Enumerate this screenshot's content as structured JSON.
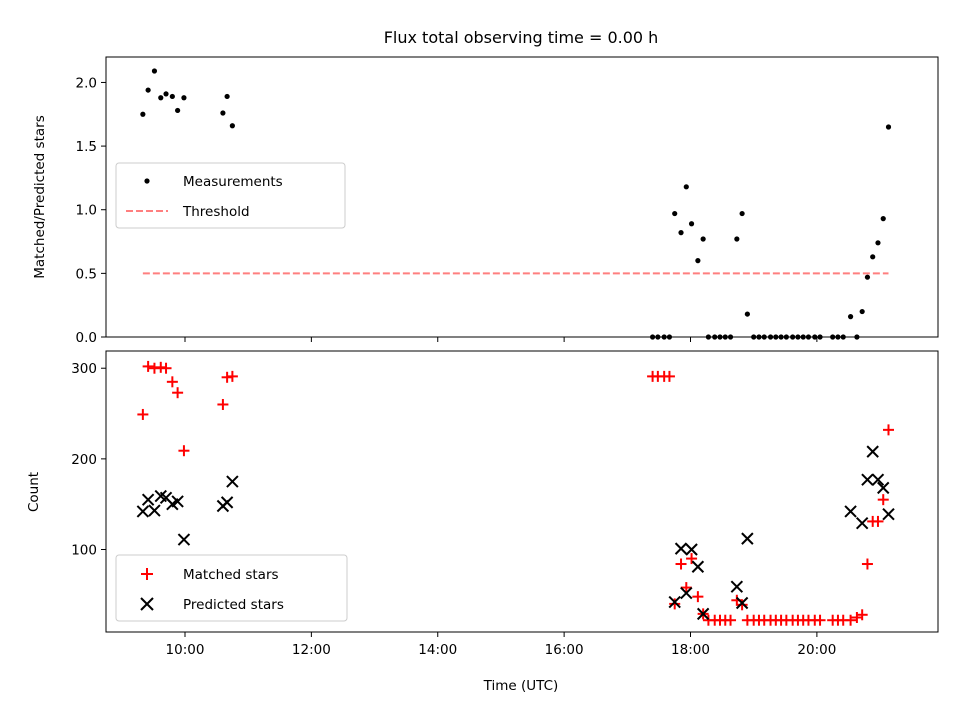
{
  "chart_data": [
    {
      "type": "scatter",
      "title": "Flux total observing time = 0.00 h",
      "xlabel": "",
      "ylabel": "Matched/Predicted stars",
      "ylim": [
        0,
        2.2
      ],
      "xlim": [
        "08:45",
        "21:55"
      ],
      "yticks": [
        {
          "v": 0.0,
          "label": "0.0"
        },
        {
          "v": 0.5,
          "label": "0.5"
        },
        {
          "v": 1.0,
          "label": "1.0"
        },
        {
          "v": 1.5,
          "label": "1.5"
        },
        {
          "v": 2.0,
          "label": "2.0"
        }
      ],
      "legend_position": "center-left",
      "series": [
        {
          "name": "Measurements",
          "marker": "dot",
          "color": "#000000",
          "points": [
            [
              "09:20",
              1.75
            ],
            [
              "09:25",
              1.94
            ],
            [
              "09:31",
              2.09
            ],
            [
              "09:37",
              1.88
            ],
            [
              "09:42",
              1.91
            ],
            [
              "09:48",
              1.89
            ],
            [
              "09:53",
              1.78
            ],
            [
              "09:59",
              1.88
            ],
            [
              "10:36",
              1.76
            ],
            [
              "10:40",
              1.89
            ],
            [
              "10:45",
              1.66
            ],
            [
              "17:24",
              0.0
            ],
            [
              "17:29",
              0.0
            ],
            [
              "17:35",
              0.0
            ],
            [
              "17:40",
              0.0
            ],
            [
              "17:45",
              0.97
            ],
            [
              "17:51",
              0.82
            ],
            [
              "17:56",
              1.18
            ],
            [
              "18:01",
              0.89
            ],
            [
              "18:07",
              0.6
            ],
            [
              "18:12",
              0.77
            ],
            [
              "18:17",
              0.0
            ],
            [
              "18:23",
              0.0
            ],
            [
              "18:28",
              0.0
            ],
            [
              "18:33",
              0.0
            ],
            [
              "18:38",
              0.0
            ],
            [
              "18:44",
              0.77
            ],
            [
              "18:49",
              0.97
            ],
            [
              "18:54",
              0.18
            ],
            [
              "19:00",
              0.0
            ],
            [
              "19:05",
              0.0
            ],
            [
              "19:10",
              0.0
            ],
            [
              "19:16",
              0.0
            ],
            [
              "19:21",
              0.0
            ],
            [
              "19:26",
              0.0
            ],
            [
              "19:31",
              0.0
            ],
            [
              "19:37",
              0.0
            ],
            [
              "19:42",
              0.0
            ],
            [
              "19:47",
              0.0
            ],
            [
              "19:52",
              0.0
            ],
            [
              "19:58",
              0.0
            ],
            [
              "20:03",
              0.0
            ],
            [
              "20:15",
              0.0
            ],
            [
              "20:20",
              0.0
            ],
            [
              "20:25",
              0.0
            ],
            [
              "20:32",
              0.16
            ],
            [
              "20:38",
              0.0
            ],
            [
              "20:43",
              0.2
            ],
            [
              "20:48",
              0.47
            ],
            [
              "20:53",
              0.63
            ],
            [
              "20:58",
              0.74
            ],
            [
              "21:03",
              0.93
            ],
            [
              "21:08",
              1.65
            ]
          ]
        },
        {
          "name": "Threshold",
          "type": "line",
          "style": "dashed",
          "color": "#ff7f7f",
          "points": [
            [
              "09:20",
              0.5
            ],
            [
              "21:08",
              0.5
            ]
          ]
        }
      ]
    },
    {
      "type": "scatter",
      "title": "",
      "xlabel": "Time (UTC)",
      "ylabel": "Count",
      "ylim": [
        9,
        319
      ],
      "xlim": [
        "08:45",
        "21:55"
      ],
      "yticks": [
        {
          "v": 100,
          "label": "100"
        },
        {
          "v": 200,
          "label": "200"
        },
        {
          "v": 300,
          "label": "300"
        }
      ],
      "xticks": [
        {
          "t": "10:00",
          "label": "10:00"
        },
        {
          "t": "12:00",
          "label": "12:00"
        },
        {
          "t": "14:00",
          "label": "14:00"
        },
        {
          "t": "16:00",
          "label": "16:00"
        },
        {
          "t": "18:00",
          "label": "18:00"
        },
        {
          "t": "20:00",
          "label": "20:00"
        }
      ],
      "legend_position": "lower-left",
      "series": [
        {
          "name": "Matched stars",
          "marker": "plus",
          "color": "#ff0000",
          "points": [
            [
              "09:20",
              249
            ],
            [
              "09:25",
              302
            ],
            [
              "09:31",
              300
            ],
            [
              "09:37",
              301
            ],
            [
              "09:42",
              300
            ],
            [
              "09:48",
              285
            ],
            [
              "09:53",
              273
            ],
            [
              "09:59",
              209
            ],
            [
              "10:36",
              260
            ],
            [
              "10:40",
              290
            ],
            [
              "10:45",
              291
            ],
            [
              "17:24",
              291
            ],
            [
              "17:29",
              291
            ],
            [
              "17:35",
              291
            ],
            [
              "17:40",
              291
            ],
            [
              "17:45",
              40
            ],
            [
              "17:51",
              84
            ],
            [
              "17:56",
              58
            ],
            [
              "18:01",
              90
            ],
            [
              "18:07",
              48
            ],
            [
              "18:12",
              29
            ],
            [
              "18:17",
              22
            ],
            [
              "18:23",
              22
            ],
            [
              "18:28",
              22
            ],
            [
              "18:33",
              22
            ],
            [
              "18:38",
              22
            ],
            [
              "18:44",
              44
            ],
            [
              "18:49",
              39
            ],
            [
              "18:54",
              22
            ],
            [
              "19:00",
              22
            ],
            [
              "19:05",
              22
            ],
            [
              "19:10",
              22
            ],
            [
              "19:16",
              22
            ],
            [
              "19:21",
              22
            ],
            [
              "19:26",
              22
            ],
            [
              "19:31",
              22
            ],
            [
              "19:37",
              22
            ],
            [
              "19:42",
              22
            ],
            [
              "19:47",
              22
            ],
            [
              "19:52",
              22
            ],
            [
              "19:58",
              22
            ],
            [
              "20:03",
              22
            ],
            [
              "20:15",
              22
            ],
            [
              "20:20",
              22
            ],
            [
              "20:25",
              22
            ],
            [
              "20:32",
              22
            ],
            [
              "20:38",
              25
            ],
            [
              "20:43",
              28
            ],
            [
              "20:48",
              84
            ],
            [
              "20:53",
              131
            ],
            [
              "20:58",
              131
            ],
            [
              "21:03",
              155
            ],
            [
              "21:08",
              232
            ]
          ]
        },
        {
          "name": "Predicted stars",
          "marker": "x",
          "color": "#000000",
          "points": [
            [
              "09:20",
              142
            ],
            [
              "09:25",
              155
            ],
            [
              "09:31",
              143
            ],
            [
              "09:37",
              159
            ],
            [
              "09:42",
              157
            ],
            [
              "09:48",
              150
            ],
            [
              "09:53",
              153
            ],
            [
              "09:59",
              111
            ],
            [
              "10:36",
              148
            ],
            [
              "10:40",
              152
            ],
            [
              "10:45",
              175
            ],
            [
              "17:45",
              42
            ],
            [
              "17:51",
              101
            ],
            [
              "17:56",
              52
            ],
            [
              "18:01",
              100
            ],
            [
              "18:07",
              81
            ],
            [
              "18:12",
              29
            ],
            [
              "18:44",
              59
            ],
            [
              "18:49",
              41
            ],
            [
              "18:54",
              112
            ],
            [
              "20:32",
              142
            ],
            [
              "20:43",
              129
            ],
            [
              "20:48",
              177
            ],
            [
              "20:53",
              208
            ],
            [
              "20:58",
              177
            ],
            [
              "21:03",
              168
            ],
            [
              "21:08",
              139
            ]
          ]
        }
      ]
    }
  ]
}
